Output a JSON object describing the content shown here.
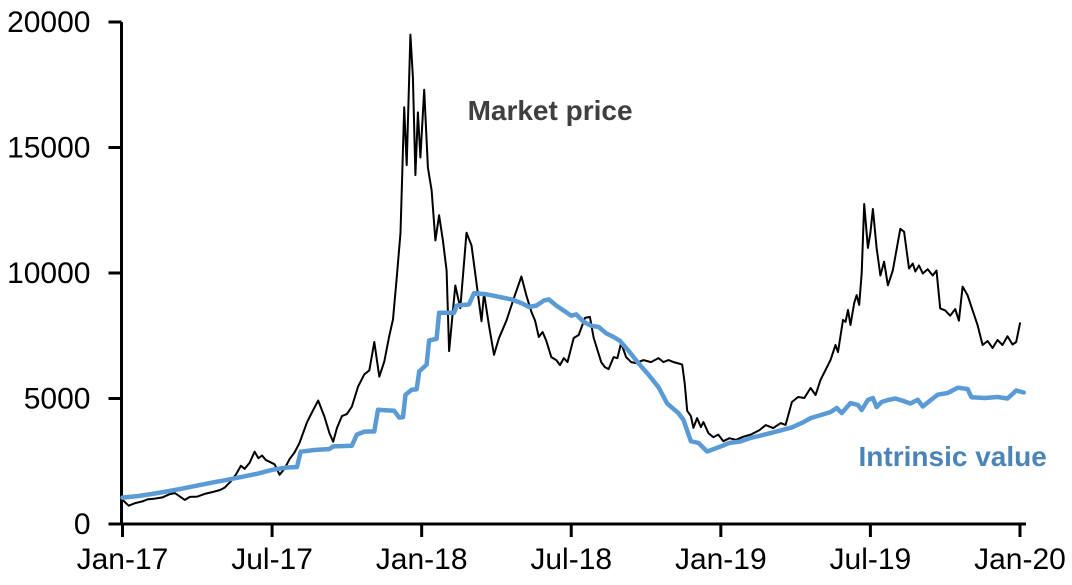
{
  "chart_data": {
    "type": "line",
    "title": "",
    "background": "#ffffff",
    "grid": false,
    "legend_position": "inline-annotations",
    "x_axis": {
      "label": "",
      "tick_labels": [
        "Jan-17",
        "Jul-17",
        "Jan-18",
        "Jul-18",
        "Jan-19",
        "Jul-19",
        "Jan-20"
      ],
      "tick_months": [
        0,
        6,
        12,
        18,
        24,
        30,
        36
      ],
      "range_months": [
        0,
        36.3
      ],
      "axis_color": "#000000"
    },
    "y_axis": {
      "label": "",
      "tick_labels": [
        "0",
        "5000",
        "10000",
        "15000",
        "20000"
      ],
      "tick_values": [
        0,
        5000,
        10000,
        15000,
        20000
      ],
      "range": [
        0,
        20000
      ],
      "axis_color": "#000000"
    },
    "annotations": [
      {
        "id": "market-price-label",
        "text": "Market price",
        "color": "#3f3f3f",
        "x_month": 17.15,
        "y_value": 16500
      },
      {
        "id": "intrinsic-value-label",
        "text": "Intrinsic value",
        "color": "#4a84b8",
        "x_month": 33.3,
        "y_value": 2700
      }
    ],
    "series": [
      {
        "name": "Market price",
        "color": "#000000",
        "line_width": 2,
        "points": [
          [
            0.0,
            960
          ],
          [
            0.25,
            730
          ],
          [
            0.5,
            830
          ],
          [
            0.8,
            900
          ],
          [
            1.0,
            980
          ],
          [
            1.3,
            1010
          ],
          [
            1.6,
            1060
          ],
          [
            1.9,
            1190
          ],
          [
            2.1,
            1230
          ],
          [
            2.3,
            1100
          ],
          [
            2.5,
            960
          ],
          [
            2.7,
            1080
          ],
          [
            3.0,
            1090
          ],
          [
            3.3,
            1200
          ],
          [
            3.6,
            1270
          ],
          [
            3.9,
            1350
          ],
          [
            4.1,
            1450
          ],
          [
            4.35,
            1700
          ],
          [
            4.55,
            1970
          ],
          [
            4.75,
            2320
          ],
          [
            4.9,
            2200
          ],
          [
            5.1,
            2440
          ],
          [
            5.3,
            2880
          ],
          [
            5.45,
            2620
          ],
          [
            5.6,
            2730
          ],
          [
            5.75,
            2550
          ],
          [
            5.9,
            2480
          ],
          [
            6.1,
            2380
          ],
          [
            6.3,
            1960
          ],
          [
            6.5,
            2200
          ],
          [
            6.7,
            2580
          ],
          [
            6.9,
            2850
          ],
          [
            7.1,
            3230
          ],
          [
            7.4,
            4050
          ],
          [
            7.6,
            4450
          ],
          [
            7.85,
            4920
          ],
          [
            8.1,
            4280
          ],
          [
            8.3,
            3620
          ],
          [
            8.45,
            3280
          ],
          [
            8.6,
            3820
          ],
          [
            8.8,
            4300
          ],
          [
            9.0,
            4380
          ],
          [
            9.2,
            4680
          ],
          [
            9.45,
            5480
          ],
          [
            9.7,
            5960
          ],
          [
            9.9,
            6120
          ],
          [
            10.1,
            7250
          ],
          [
            10.3,
            5870
          ],
          [
            10.5,
            6480
          ],
          [
            10.7,
            7500
          ],
          [
            10.85,
            8150
          ],
          [
            11.0,
            9800
          ],
          [
            11.15,
            11600
          ],
          [
            11.3,
            16600
          ],
          [
            11.4,
            14300
          ],
          [
            11.55,
            19500
          ],
          [
            11.65,
            17800
          ],
          [
            11.75,
            13900
          ],
          [
            11.85,
            16400
          ],
          [
            11.95,
            14600
          ],
          [
            12.1,
            17300
          ],
          [
            12.25,
            14200
          ],
          [
            12.4,
            13300
          ],
          [
            12.55,
            11300
          ],
          [
            12.7,
            12300
          ],
          [
            12.85,
            11300
          ],
          [
            13.0,
            10100
          ],
          [
            13.1,
            6890
          ],
          [
            13.35,
            9500
          ],
          [
            13.55,
            8600
          ],
          [
            13.8,
            11600
          ],
          [
            14.0,
            11100
          ],
          [
            14.2,
            9600
          ],
          [
            14.4,
            8080
          ],
          [
            14.5,
            9190
          ],
          [
            14.7,
            7900
          ],
          [
            14.9,
            6740
          ],
          [
            15.1,
            7400
          ],
          [
            15.4,
            8100
          ],
          [
            15.7,
            9000
          ],
          [
            16.0,
            9860
          ],
          [
            16.2,
            9100
          ],
          [
            16.4,
            8450
          ],
          [
            16.55,
            8100
          ],
          [
            16.7,
            7450
          ],
          [
            16.85,
            7650
          ],
          [
            17.0,
            7300
          ],
          [
            17.2,
            6650
          ],
          [
            17.4,
            6530
          ],
          [
            17.55,
            6330
          ],
          [
            17.7,
            6610
          ],
          [
            17.85,
            6450
          ],
          [
            18.1,
            7410
          ],
          [
            18.3,
            7530
          ],
          [
            18.55,
            8210
          ],
          [
            18.75,
            8250
          ],
          [
            18.9,
            7410
          ],
          [
            19.2,
            6450
          ],
          [
            19.35,
            6250
          ],
          [
            19.5,
            6170
          ],
          [
            19.7,
            6650
          ],
          [
            19.85,
            6610
          ],
          [
            20.0,
            7210
          ],
          [
            20.2,
            6650
          ],
          [
            20.4,
            6450
          ],
          [
            20.6,
            6410
          ],
          [
            20.9,
            6530
          ],
          [
            21.2,
            6450
          ],
          [
            21.5,
            6610
          ],
          [
            21.7,
            6450
          ],
          [
            21.9,
            6530
          ],
          [
            22.1,
            6450
          ],
          [
            22.3,
            6400
          ],
          [
            22.45,
            6350
          ],
          [
            22.55,
            5600
          ],
          [
            22.65,
            4510
          ],
          [
            22.8,
            4300
          ],
          [
            22.9,
            3830
          ],
          [
            23.05,
            4220
          ],
          [
            23.2,
            3860
          ],
          [
            23.3,
            4060
          ],
          [
            23.5,
            3620
          ],
          [
            23.7,
            3460
          ],
          [
            23.9,
            3560
          ],
          [
            24.1,
            3300
          ],
          [
            24.35,
            3420
          ],
          [
            24.6,
            3350
          ],
          [
            24.9,
            3480
          ],
          [
            25.2,
            3560
          ],
          [
            25.55,
            3740
          ],
          [
            25.8,
            3940
          ],
          [
            26.1,
            3820
          ],
          [
            26.4,
            4020
          ],
          [
            26.6,
            3950
          ],
          [
            26.85,
            4860
          ],
          [
            27.1,
            5060
          ],
          [
            27.35,
            5020
          ],
          [
            27.6,
            5420
          ],
          [
            27.8,
            5140
          ],
          [
            28.0,
            5740
          ],
          [
            28.2,
            6130
          ],
          [
            28.4,
            6530
          ],
          [
            28.6,
            7130
          ],
          [
            28.7,
            6850
          ],
          [
            28.9,
            8130
          ],
          [
            29.0,
            8050
          ],
          [
            29.1,
            8530
          ],
          [
            29.2,
            7930
          ],
          [
            29.35,
            8800
          ],
          [
            29.45,
            9120
          ],
          [
            29.55,
            8730
          ],
          [
            29.65,
            10000
          ],
          [
            29.75,
            12750
          ],
          [
            29.9,
            11000
          ],
          [
            30.0,
            11600
          ],
          [
            30.1,
            12550
          ],
          [
            30.25,
            11000
          ],
          [
            30.4,
            9900
          ],
          [
            30.55,
            10450
          ],
          [
            30.7,
            9510
          ],
          [
            30.9,
            10100
          ],
          [
            31.2,
            11760
          ],
          [
            31.35,
            11640
          ],
          [
            31.55,
            10180
          ],
          [
            31.7,
            10380
          ],
          [
            31.8,
            10060
          ],
          [
            31.95,
            10300
          ],
          [
            32.1,
            9980
          ],
          [
            32.3,
            10150
          ],
          [
            32.5,
            9900
          ],
          [
            32.65,
            10100
          ],
          [
            32.8,
            8590
          ],
          [
            33.0,
            8510
          ],
          [
            33.2,
            8300
          ],
          [
            33.4,
            8560
          ],
          [
            33.55,
            8100
          ],
          [
            33.7,
            9460
          ],
          [
            33.9,
            9110
          ],
          [
            34.1,
            8510
          ],
          [
            34.3,
            7920
          ],
          [
            34.5,
            7130
          ],
          [
            34.7,
            7290
          ],
          [
            34.9,
            7010
          ],
          [
            35.1,
            7330
          ],
          [
            35.3,
            7130
          ],
          [
            35.5,
            7480
          ],
          [
            35.7,
            7150
          ],
          [
            35.85,
            7250
          ],
          [
            36.0,
            8000
          ]
        ]
      },
      {
        "name": "Intrinsic value",
        "color": "#5b9bd5",
        "line_width": 4.5,
        "points": [
          [
            0.0,
            1050
          ],
          [
            0.6,
            1110
          ],
          [
            1.2,
            1200
          ],
          [
            1.8,
            1300
          ],
          [
            2.4,
            1410
          ],
          [
            3.0,
            1530
          ],
          [
            3.6,
            1650
          ],
          [
            4.2,
            1760
          ],
          [
            4.8,
            1880
          ],
          [
            5.4,
            2000
          ],
          [
            6.0,
            2160
          ],
          [
            6.6,
            2250
          ],
          [
            7.0,
            2270
          ],
          [
            7.15,
            2880
          ],
          [
            7.7,
            2950
          ],
          [
            8.3,
            2990
          ],
          [
            8.45,
            3090
          ],
          [
            9.2,
            3120
          ],
          [
            9.4,
            3560
          ],
          [
            9.7,
            3680
          ],
          [
            10.1,
            3690
          ],
          [
            10.25,
            4550
          ],
          [
            10.9,
            4510
          ],
          [
            11.1,
            4240
          ],
          [
            11.25,
            4260
          ],
          [
            11.35,
            5150
          ],
          [
            11.6,
            5350
          ],
          [
            11.8,
            5370
          ],
          [
            11.9,
            6080
          ],
          [
            12.2,
            6350
          ],
          [
            12.3,
            7310
          ],
          [
            12.6,
            7380
          ],
          [
            12.7,
            8420
          ],
          [
            13.3,
            8420
          ],
          [
            13.4,
            8700
          ],
          [
            13.9,
            8750
          ],
          [
            14.1,
            9200
          ],
          [
            14.6,
            9150
          ],
          [
            15.1,
            9050
          ],
          [
            15.6,
            8950
          ],
          [
            16.0,
            8800
          ],
          [
            16.3,
            8650
          ],
          [
            16.6,
            8700
          ],
          [
            16.9,
            8900
          ],
          [
            17.1,
            8950
          ],
          [
            17.4,
            8700
          ],
          [
            17.7,
            8500
          ],
          [
            18.0,
            8300
          ],
          [
            18.2,
            8350
          ],
          [
            18.5,
            8050
          ],
          [
            18.8,
            7900
          ],
          [
            19.1,
            7850
          ],
          [
            19.4,
            7600
          ],
          [
            19.7,
            7450
          ],
          [
            19.95,
            7300
          ],
          [
            20.3,
            6900
          ],
          [
            20.7,
            6400
          ],
          [
            21.1,
            5950
          ],
          [
            21.5,
            5450
          ],
          [
            21.85,
            4800
          ],
          [
            22.3,
            4420
          ],
          [
            22.5,
            4150
          ],
          [
            22.8,
            3300
          ],
          [
            23.1,
            3230
          ],
          [
            23.45,
            2890
          ],
          [
            23.95,
            3070
          ],
          [
            24.35,
            3230
          ],
          [
            24.75,
            3280
          ],
          [
            25.2,
            3430
          ],
          [
            25.7,
            3550
          ],
          [
            26.3,
            3700
          ],
          [
            26.85,
            3850
          ],
          [
            27.3,
            4050
          ],
          [
            27.6,
            4220
          ],
          [
            28.0,
            4340
          ],
          [
            28.4,
            4460
          ],
          [
            28.65,
            4620
          ],
          [
            28.85,
            4420
          ],
          [
            29.2,
            4820
          ],
          [
            29.5,
            4740
          ],
          [
            29.65,
            4540
          ],
          [
            29.9,
            4940
          ],
          [
            30.1,
            5020
          ],
          [
            30.25,
            4660
          ],
          [
            30.45,
            4860
          ],
          [
            30.7,
            4940
          ],
          [
            31.0,
            5000
          ],
          [
            31.3,
            4910
          ],
          [
            31.6,
            4800
          ],
          [
            31.9,
            4950
          ],
          [
            32.1,
            4680
          ],
          [
            32.5,
            5000
          ],
          [
            32.7,
            5150
          ],
          [
            33.1,
            5220
          ],
          [
            33.5,
            5430
          ],
          [
            33.9,
            5380
          ],
          [
            34.05,
            5050
          ],
          [
            34.6,
            5020
          ],
          [
            35.1,
            5060
          ],
          [
            35.5,
            5000
          ],
          [
            35.85,
            5320
          ],
          [
            36.15,
            5240
          ]
        ]
      }
    ]
  }
}
